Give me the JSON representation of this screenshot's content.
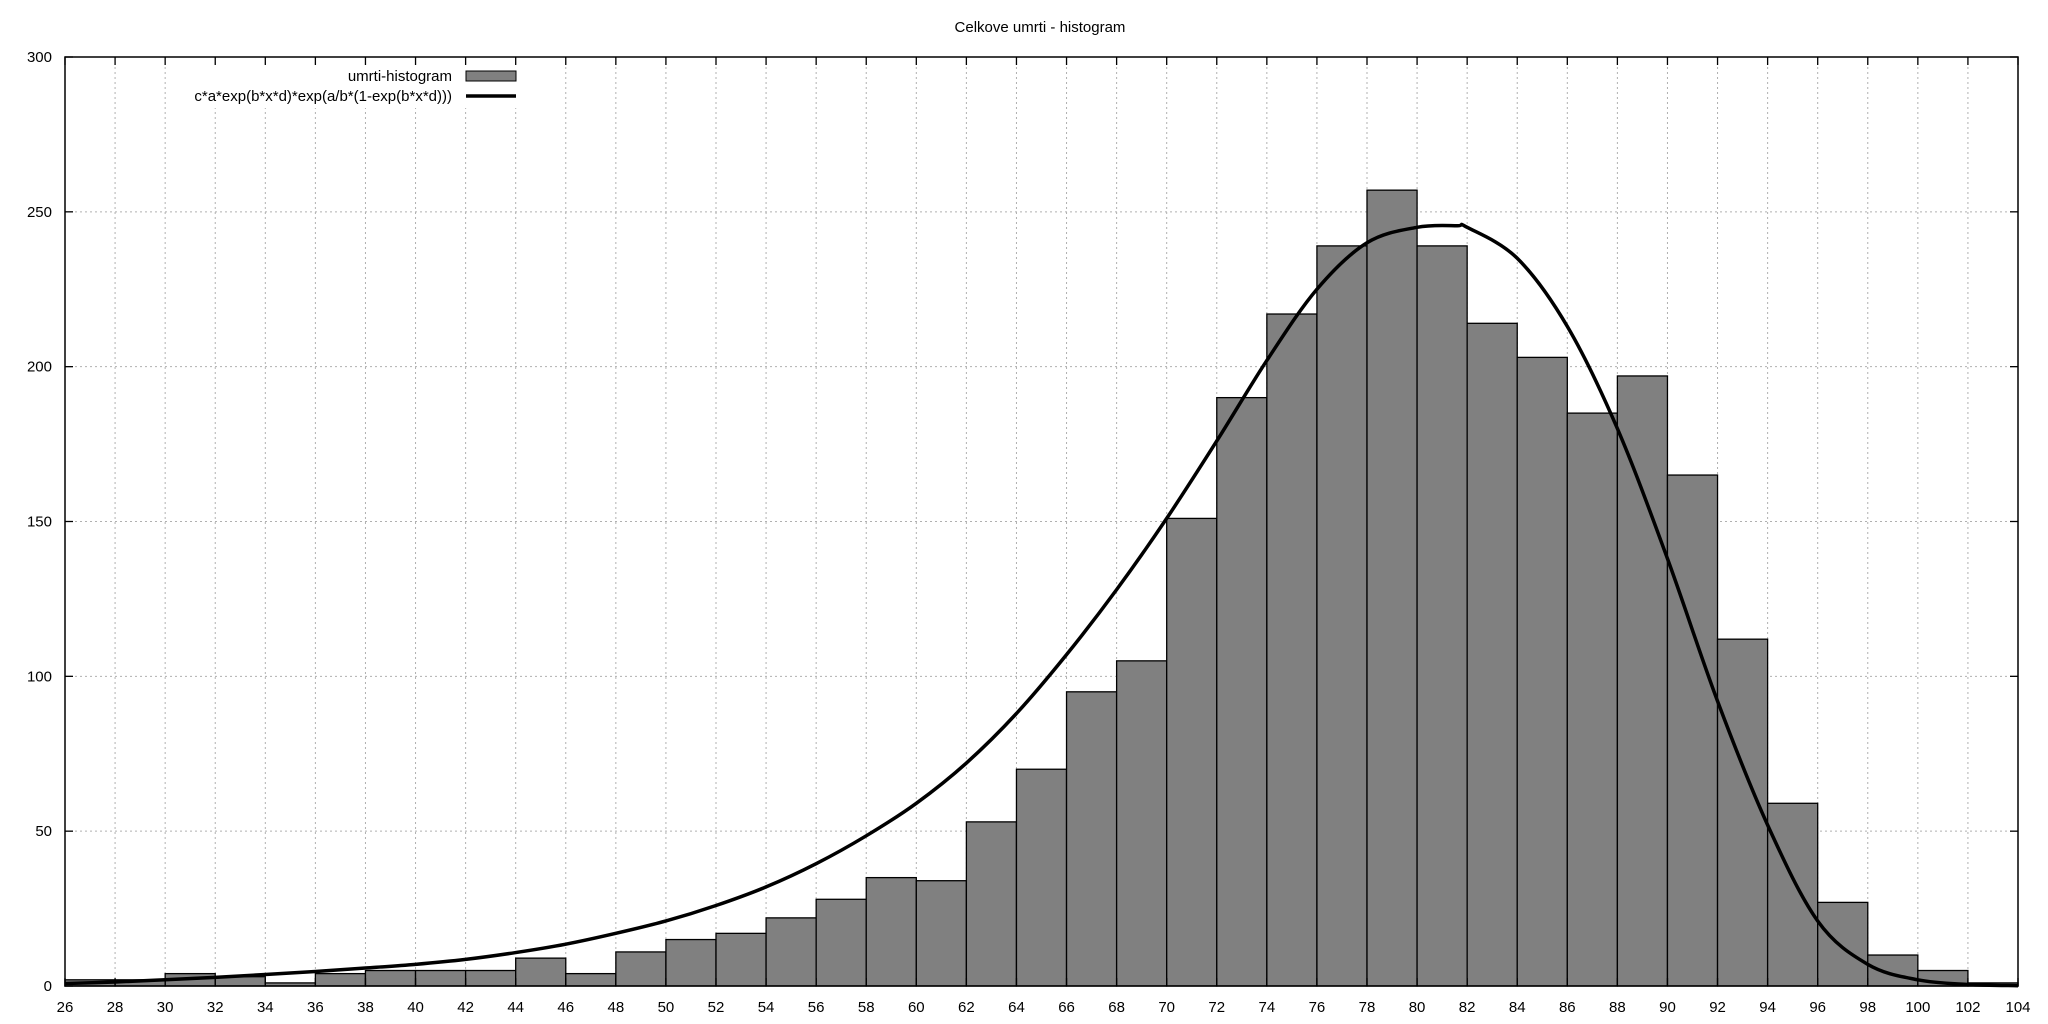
{
  "chart_data": {
    "type": "bar",
    "title": "Celkove umrti - histogram",
    "xlabel": "",
    "ylabel": "",
    "xlim": [
      26,
      104
    ],
    "ylim": [
      0,
      300
    ],
    "x_ticks": [
      26,
      28,
      30,
      32,
      34,
      36,
      38,
      40,
      42,
      44,
      46,
      48,
      50,
      52,
      54,
      56,
      58,
      60,
      62,
      64,
      66,
      68,
      70,
      72,
      74,
      76,
      78,
      80,
      82,
      84,
      86,
      88,
      90,
      92,
      94,
      96,
      98,
      100,
      102,
      104
    ],
    "y_ticks": [
      0,
      50,
      100,
      150,
      200,
      250,
      300
    ],
    "grid": true,
    "legend": {
      "position": "top-left",
      "entries": [
        "umrti-histogram",
        "c*a*exp(b*x*d)*exp(a/b*(1-exp(b*x*d)))"
      ]
    },
    "series": [
      {
        "name": "umrti-histogram",
        "kind": "bar",
        "bin_width": 2,
        "fill": "#808080",
        "x": [
          26,
          28,
          30,
          32,
          34,
          36,
          38,
          40,
          42,
          44,
          46,
          48,
          50,
          52,
          54,
          56,
          58,
          60,
          62,
          64,
          66,
          68,
          70,
          72,
          74,
          76,
          78,
          80,
          82,
          84,
          86,
          88,
          90,
          92,
          94,
          96,
          98,
          100,
          102
        ],
        "values": [
          2,
          2,
          4,
          3,
          1,
          4,
          5,
          5,
          5,
          9,
          4,
          11,
          15,
          17,
          22,
          28,
          35,
          34,
          53,
          70,
          95,
          105,
          151,
          190,
          217,
          239,
          257,
          239,
          214,
          203,
          185,
          197,
          165,
          112,
          59,
          27,
          10,
          5,
          1
        ]
      },
      {
        "name": "c*a*exp(b*x*d)*exp(a/b*(1-exp(b*x*d)))",
        "kind": "line",
        "stroke": "#000000",
        "x": [
          26,
          28,
          30,
          32,
          34,
          36,
          38,
          40,
          42,
          44,
          46,
          48,
          50,
          52,
          54,
          56,
          58,
          60,
          62,
          64,
          66,
          68,
          70,
          72,
          74,
          76,
          78,
          80,
          81.6,
          82,
          84,
          86,
          88,
          90,
          92,
          94,
          96,
          98,
          100,
          102,
          104
        ],
        "values": [
          0.8,
          1.3,
          2,
          2.8,
          3.7,
          4.7,
          5.8,
          7,
          8.6,
          10.8,
          13.5,
          17,
          21,
          26,
          32,
          39.5,
          48.5,
          59,
          72,
          88,
          107,
          128,
          151,
          176,
          202,
          225,
          240,
          245,
          245.5,
          245,
          235,
          213,
          180,
          138,
          92,
          52,
          21,
          7,
          2,
          0.5,
          0.1
        ]
      }
    ]
  }
}
